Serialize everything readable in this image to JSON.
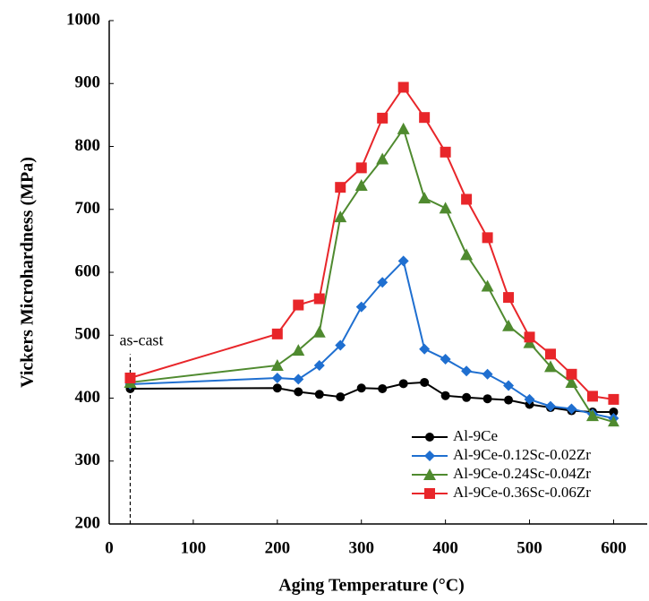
{
  "chart_data": {
    "type": "line",
    "x_label": "Aging Temperature (°C)",
    "y_label": "Vickers Microhardness (MPa)",
    "annotation": "as-cast",
    "x": [
      25,
      200,
      225,
      250,
      275,
      300,
      325,
      350,
      375,
      400,
      425,
      450,
      475,
      500,
      525,
      550,
      575,
      600
    ],
    "series": [
      {
        "name": "Al-9Ce",
        "color": "#000000",
        "marker": "circle",
        "values": [
          415,
          416,
          410,
          406,
          402,
          416,
          415,
          423,
          425,
          404,
          401,
          399,
          397,
          390,
          385,
          380,
          378,
          378
        ]
      },
      {
        "name": "Al-9Ce-0.12Sc-0.02Zr",
        "color": "#1f6fd0",
        "marker": "diamond",
        "values": [
          422,
          432,
          430,
          452,
          484,
          545,
          584,
          618,
          478,
          462,
          443,
          438,
          420,
          398,
          387,
          383,
          375,
          368
        ]
      },
      {
        "name": "Al-9Ce-0.24Sc-0.04Zr",
        "color": "#4f8a2f",
        "marker": "triangle",
        "values": [
          425,
          452,
          476,
          505,
          688,
          738,
          780,
          828,
          718,
          702,
          628,
          578,
          515,
          488,
          450,
          425,
          372,
          362
        ]
      },
      {
        "name": "Al-9Ce-0.36Sc-0.06Zr",
        "color": "#e8262a",
        "marker": "square",
        "values": [
          432,
          502,
          548,
          558,
          735,
          766,
          845,
          894,
          846,
          791,
          716,
          655,
          560,
          497,
          470,
          438,
          403,
          398
        ]
      }
    ],
    "xlim": [
      0,
      640
    ],
    "xticks": [
      0,
      100,
      200,
      300,
      400,
      500,
      600
    ],
    "ylim": [
      200,
      1000
    ],
    "yticks": [
      200,
      300,
      400,
      500,
      600,
      700,
      800,
      900,
      1000
    ],
    "legend": "lower right",
    "grid": false
  }
}
